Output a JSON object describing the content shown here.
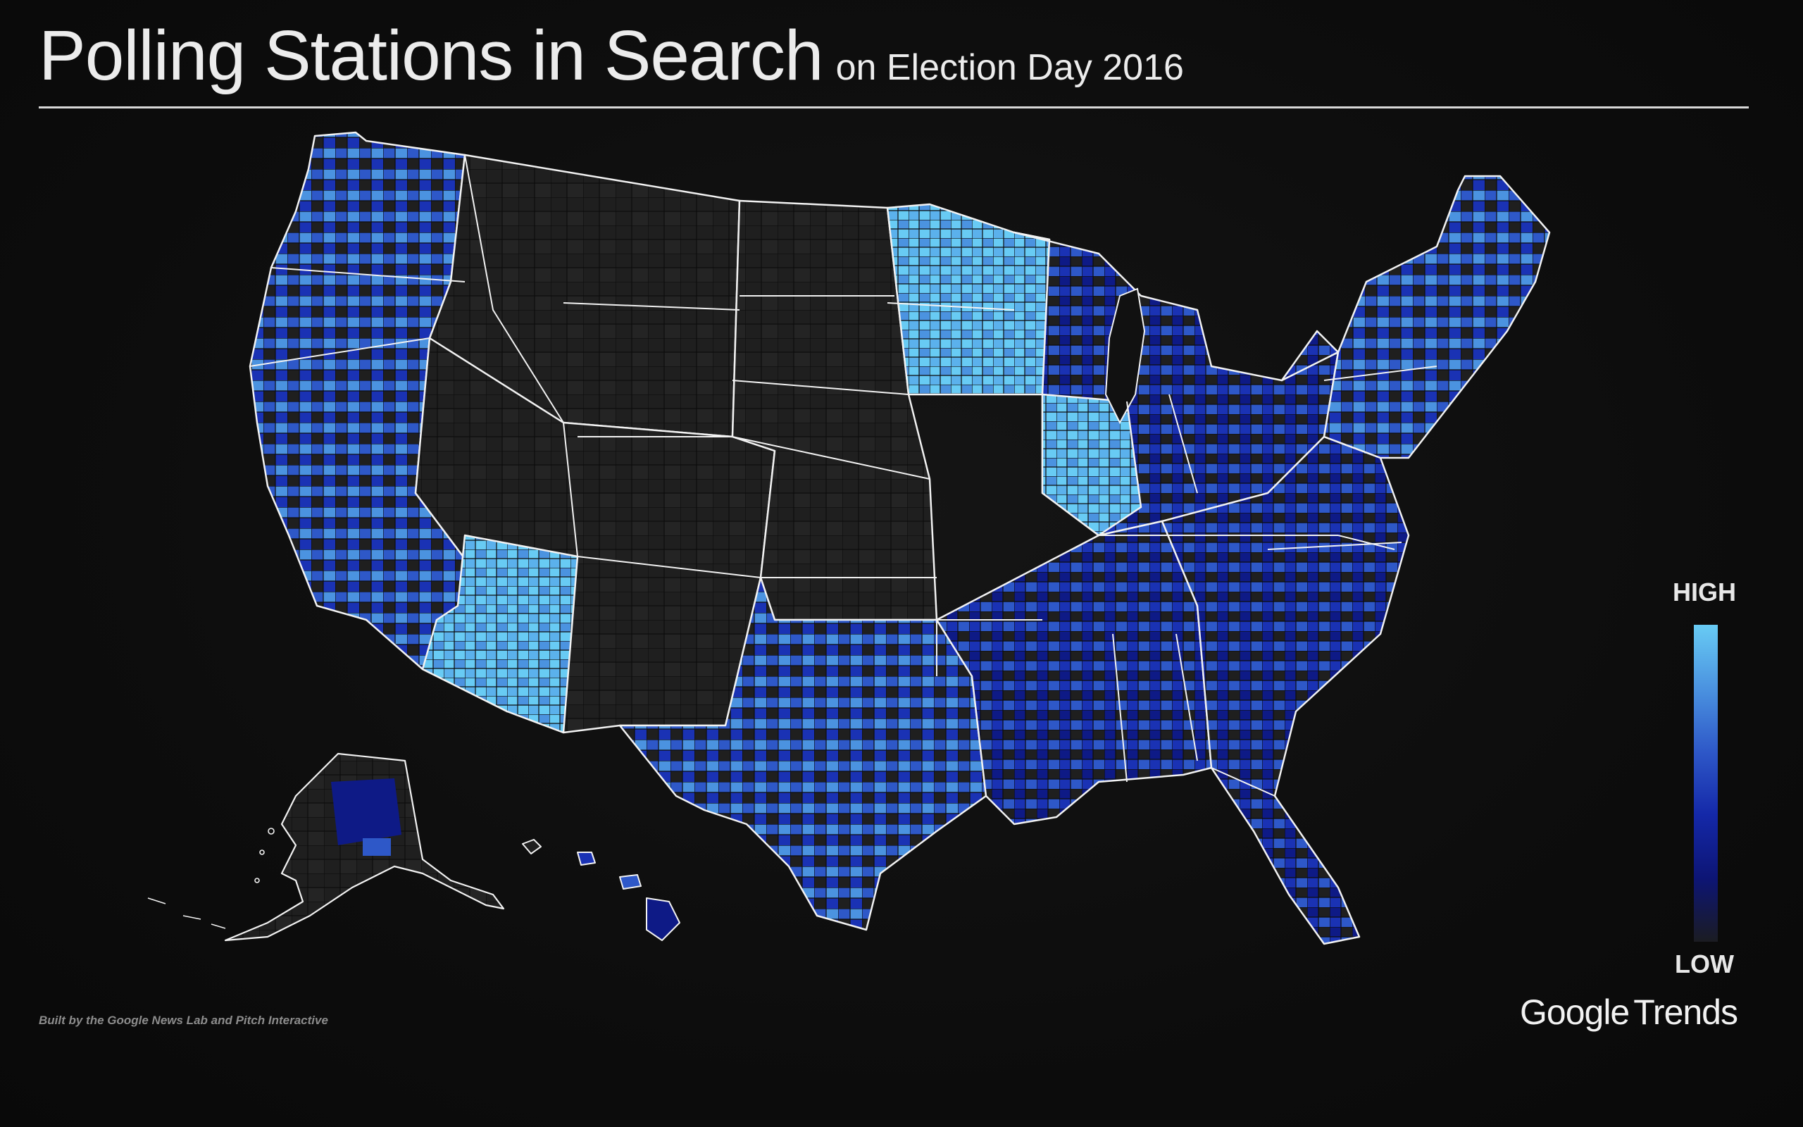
{
  "title": {
    "main": "Polling Stations in Search",
    "sub": "on Election Day 2016"
  },
  "legend": {
    "high_label": "HIGH",
    "low_label": "LOW",
    "gradient": [
      "#68cbf4",
      "#4b93e0",
      "#2e58c8",
      "#1428a8",
      "#0d1575",
      "#1b1c22"
    ]
  },
  "footer": {
    "credit": "Built by the Google News Lab and Pitch Interactive",
    "brand_google": "Google",
    "brand_trends": "Trends"
  },
  "colors": {
    "background": "#0d0d0d",
    "no_data": "#1f1f1f",
    "level_1": "#68cbf4",
    "level_2": "#4b93e0",
    "level_3": "#2e58c8",
    "level_4": "#1a32b4",
    "level_5": "#0e1a86",
    "border": "#f2f2f2"
  }
}
